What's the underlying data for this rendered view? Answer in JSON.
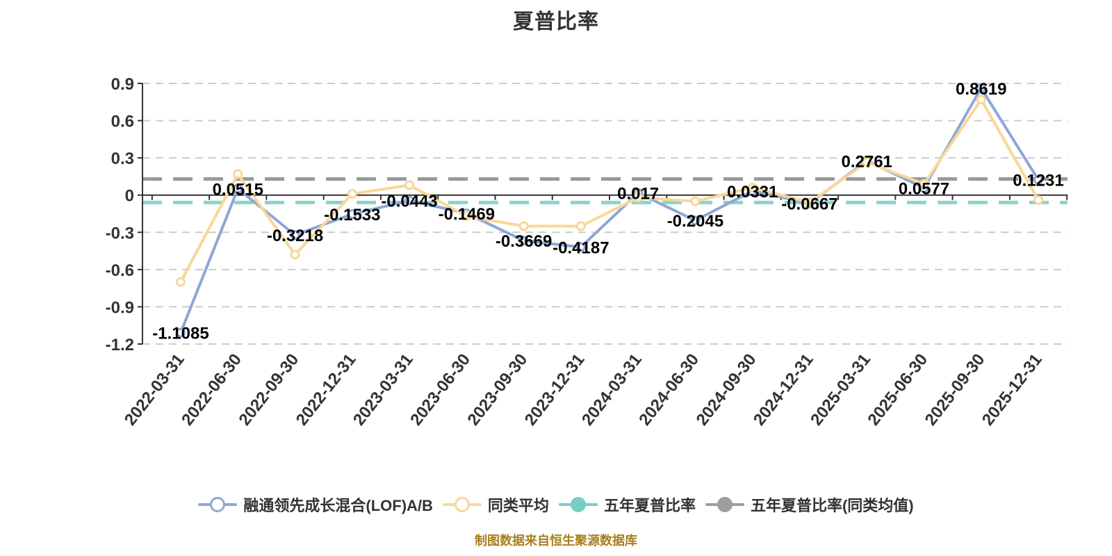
{
  "title": "夏普比率",
  "caption": "制图数据来自恒生聚源数据库",
  "colors": {
    "fund_line": "#8DA7D6",
    "peer_line": "#F8D798",
    "ref_teal": "#8BD4CC",
    "ref_gray": "#999999",
    "grid": "#CCCCCC",
    "axis": "#333333",
    "axis_text": "#333333",
    "point_label": "#000000",
    "marker_fill": "#FFFFFF",
    "title_text": "#333333",
    "caption_text": "#A8801E",
    "legend_text": "#333333"
  },
  "chart_data": {
    "type": "line",
    "title": "夏普比率",
    "xlabel": "",
    "ylabel": "",
    "grid": true,
    "legend_position": "bottom",
    "ylim": [
      -1.2,
      0.9
    ],
    "yticks": [
      0.9,
      0.6,
      0.3,
      0,
      -0.3,
      -0.6,
      -0.9,
      -1.2
    ],
    "ytick_labels": [
      "0.9",
      "0.6",
      "0.3",
      "0",
      "-0.3",
      "-0.6",
      "-0.9",
      "-1.2"
    ],
    "categories": [
      "2022-03-31",
      "2022-06-30",
      "2022-09-30",
      "2022-12-31",
      "2023-03-31",
      "2023-06-30",
      "2023-09-30",
      "2023-12-31",
      "2024-03-31",
      "2024-06-30",
      "2024-09-30",
      "2024-12-31",
      "2025-03-31",
      "2025-06-30",
      "2025-09-30",
      "2025-12-31"
    ],
    "series": [
      {
        "id": "fund",
        "name": "融通领先成长混合(LOF)A/B",
        "color": "#8DA7D6",
        "show_labels": true,
        "values": [
          -1.1085,
          0.0515,
          -0.3218,
          -0.1533,
          -0.0443,
          -0.1469,
          -0.3669,
          -0.4187,
          0.017,
          -0.2045,
          0.0331,
          -0.0667,
          0.2761,
          0.0577,
          0.8619,
          0.1231
        ],
        "labels": [
          "-1.1085",
          "0.0515",
          "-0.3218",
          "-0.1533",
          "-0.0443",
          "-0.1469",
          "-0.3669",
          "-0.4187",
          "0.017",
          "-0.2045",
          "0.0331",
          "-0.0667",
          "0.2761",
          "0.0577",
          "0.8619",
          "0.1231"
        ]
      },
      {
        "id": "peer-average",
        "name": "同类平均",
        "color": "#F8D798",
        "show_labels": false,
        "values": [
          -0.7,
          0.17,
          -0.48,
          0.01,
          0.08,
          -0.17,
          -0.25,
          -0.25,
          -0.02,
          -0.05,
          0.06,
          -0.06,
          0.265,
          0.09,
          0.77,
          -0.04
        ]
      }
    ],
    "reference_lines": [
      {
        "id": "five-year-sharpe",
        "name": "五年夏普比率",
        "value": -0.06,
        "color": "#8BD4CC"
      },
      {
        "id": "five-year-sharpe-peer",
        "name": "五年夏普比率(同类均值)",
        "value": 0.13,
        "color": "#999999"
      }
    ]
  },
  "legend": {
    "items": [
      {
        "id": "fund",
        "label": "融通领先成长混合(LOF)A/B",
        "color": "#8DA7D6",
        "marker": "hollow"
      },
      {
        "id": "peer-average",
        "label": "同类平均",
        "color": "#F8D798",
        "marker": "hollow"
      },
      {
        "id": "five-year-sharpe",
        "label": "五年夏普比率",
        "color": "#76CEC6",
        "marker": "solid"
      },
      {
        "id": "five-year-sharpe-peer",
        "label": "五年夏普比率(同类均值)",
        "color": "#9E9E9E",
        "marker": "solid"
      }
    ]
  }
}
